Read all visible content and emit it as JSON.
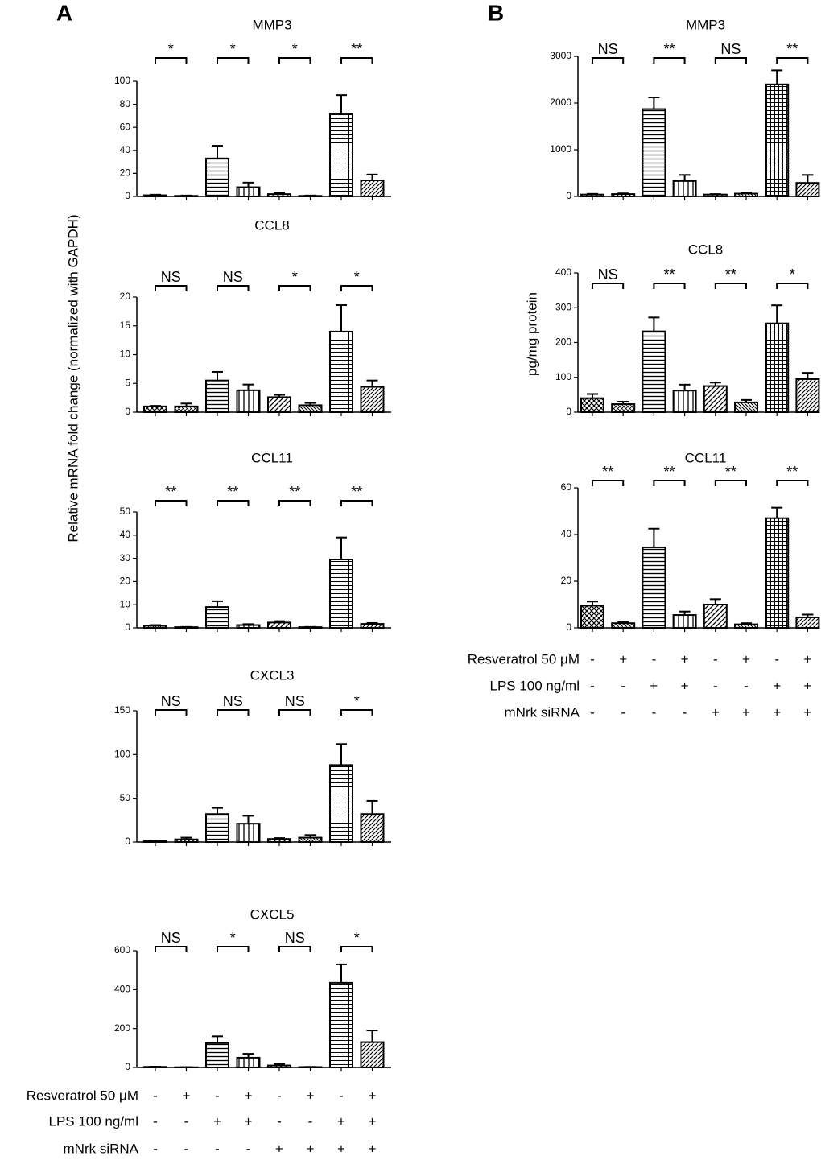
{
  "panels": [
    {
      "letter": "A",
      "ylabel": "Relative mRNA fold change (normalized with GAPDH)",
      "conditions": [
        {
          "label": "Resveratrol 50 μM",
          "signs": [
            "-",
            "+",
            "-",
            "+",
            "-",
            "+",
            "-",
            "+"
          ]
        },
        {
          "label": "LPS 100 ng/ml",
          "signs": [
            "-",
            "-",
            "+",
            "+",
            "-",
            "-",
            "+",
            "+"
          ]
        },
        {
          "label": "mNrk siRNA",
          "signs": [
            "-",
            "-",
            "-",
            "-",
            "+",
            "+",
            "+",
            "+"
          ]
        }
      ]
    },
    {
      "letter": "B",
      "ylabel": "pg/mg protein",
      "conditions": [
        {
          "label": "Resveratrol 50 μM",
          "signs": [
            "-",
            "+",
            "-",
            "+",
            "-",
            "+",
            "-",
            "+"
          ]
        },
        {
          "label": "LPS 100 ng/ml",
          "signs": [
            "-",
            "-",
            "+",
            "+",
            "-",
            "-",
            "+",
            "+"
          ]
        },
        {
          "label": "mNrk siRNA",
          "signs": [
            "-",
            "-",
            "-",
            "-",
            "+",
            "+",
            "+",
            "+"
          ]
        }
      ]
    }
  ],
  "chart_data": [
    {
      "type": "bar",
      "title": "MMP3",
      "categories": [
        null,
        null,
        null,
        null,
        null,
        null,
        null,
        null
      ],
      "values": [
        1,
        0.5,
        33,
        8,
        2,
        0.5,
        72,
        14
      ],
      "errors": [
        0.5,
        0.3,
        11,
        4,
        1,
        0.3,
        16,
        5
      ],
      "ylim": [
        0,
        100
      ],
      "yticks": [
        0,
        20,
        40,
        60,
        80,
        100
      ],
      "annotations": [
        "*",
        "*",
        "*",
        "**"
      ]
    },
    {
      "type": "bar",
      "title": "CCL8",
      "categories": [
        null,
        null,
        null,
        null,
        null,
        null,
        null,
        null
      ],
      "values": [
        1,
        1,
        5.5,
        3.8,
        2.6,
        1.2,
        14,
        4.4
      ],
      "errors": [
        0.1,
        0.5,
        1.5,
        1,
        0.4,
        0.4,
        4.6,
        1.1
      ],
      "ylim": [
        0,
        20
      ],
      "yticks": [
        0,
        5,
        10,
        15,
        20
      ],
      "annotations": [
        "NS",
        "NS",
        "*",
        "*"
      ]
    },
    {
      "type": "bar",
      "title": "CCL11",
      "categories": [
        null,
        null,
        null,
        null,
        null,
        null,
        null,
        null
      ],
      "values": [
        1,
        0.3,
        9,
        1.2,
        2.3,
        0.3,
        29.5,
        1.7
      ],
      "errors": [
        0.2,
        0.1,
        2.5,
        0.4,
        0.6,
        0.1,
        9.5,
        0.4
      ],
      "ylim": [
        0,
        50
      ],
      "yticks": [
        0,
        10,
        20,
        30,
        40,
        50
      ],
      "annotations": [
        "**",
        "**",
        "**",
        "**"
      ]
    },
    {
      "type": "bar",
      "title": "CXCL3",
      "categories": [
        null,
        null,
        null,
        null,
        null,
        null,
        null,
        null
      ],
      "values": [
        1,
        3,
        32,
        21,
        3.5,
        5,
        88,
        32
      ],
      "errors": [
        0.5,
        2,
        7,
        9,
        1,
        3,
        24,
        15
      ],
      "ylim": [
        0,
        150
      ],
      "yticks": [
        0,
        50,
        100,
        150
      ],
      "annotations": [
        "NS",
        "NS",
        "NS",
        "*"
      ]
    },
    {
      "type": "bar",
      "title": "CXCL5",
      "categories": [
        null,
        null,
        null,
        null,
        null,
        null,
        null,
        null
      ],
      "values": [
        3,
        1,
        125,
        50,
        10,
        2,
        435,
        130
      ],
      "errors": [
        1,
        0.5,
        35,
        20,
        8,
        1,
        95,
        60
      ],
      "ylim": [
        0,
        600
      ],
      "yticks": [
        0,
        200,
        400,
        600
      ],
      "annotations": [
        "NS",
        "*",
        "NS",
        "*"
      ]
    },
    {
      "type": "bar",
      "title": "MMP3",
      "categories": [
        null,
        null,
        null,
        null,
        null,
        null,
        null,
        null
      ],
      "values": [
        40,
        50,
        1870,
        330,
        40,
        60,
        2400,
        290
      ],
      "errors": [
        15,
        15,
        250,
        130,
        10,
        20,
        300,
        170
      ],
      "ylim": [
        0,
        3000
      ],
      "yticks": [
        0,
        1000,
        2000,
        3000
      ],
      "annotations": [
        "NS",
        "**",
        "NS",
        "**"
      ]
    },
    {
      "type": "bar",
      "title": "CCL8",
      "categories": [
        null,
        null,
        null,
        null,
        null,
        null,
        null,
        null
      ],
      "values": [
        40,
        23,
        232,
        62,
        75,
        28,
        255,
        95
      ],
      "errors": [
        12,
        7,
        40,
        17,
        10,
        7,
        52,
        18
      ],
      "ylim": [
        0,
        400
      ],
      "yticks": [
        0,
        100,
        200,
        300,
        400
      ],
      "annotations": [
        "NS",
        "**",
        "**",
        "*"
      ]
    },
    {
      "type": "bar",
      "title": "CCL11",
      "categories": [
        null,
        null,
        null,
        null,
        null,
        null,
        null,
        null
      ],
      "values": [
        9.5,
        2,
        34.5,
        5.5,
        10,
        1.5,
        47,
        4.5
      ],
      "errors": [
        1.8,
        0.5,
        8,
        1.5,
        2.3,
        0.5,
        4.5,
        1.2
      ],
      "ylim": [
        0,
        60
      ],
      "yticks": [
        0,
        20,
        40,
        60
      ],
      "annotations": [
        "**",
        "**",
        "**",
        "**"
      ]
    }
  ]
}
